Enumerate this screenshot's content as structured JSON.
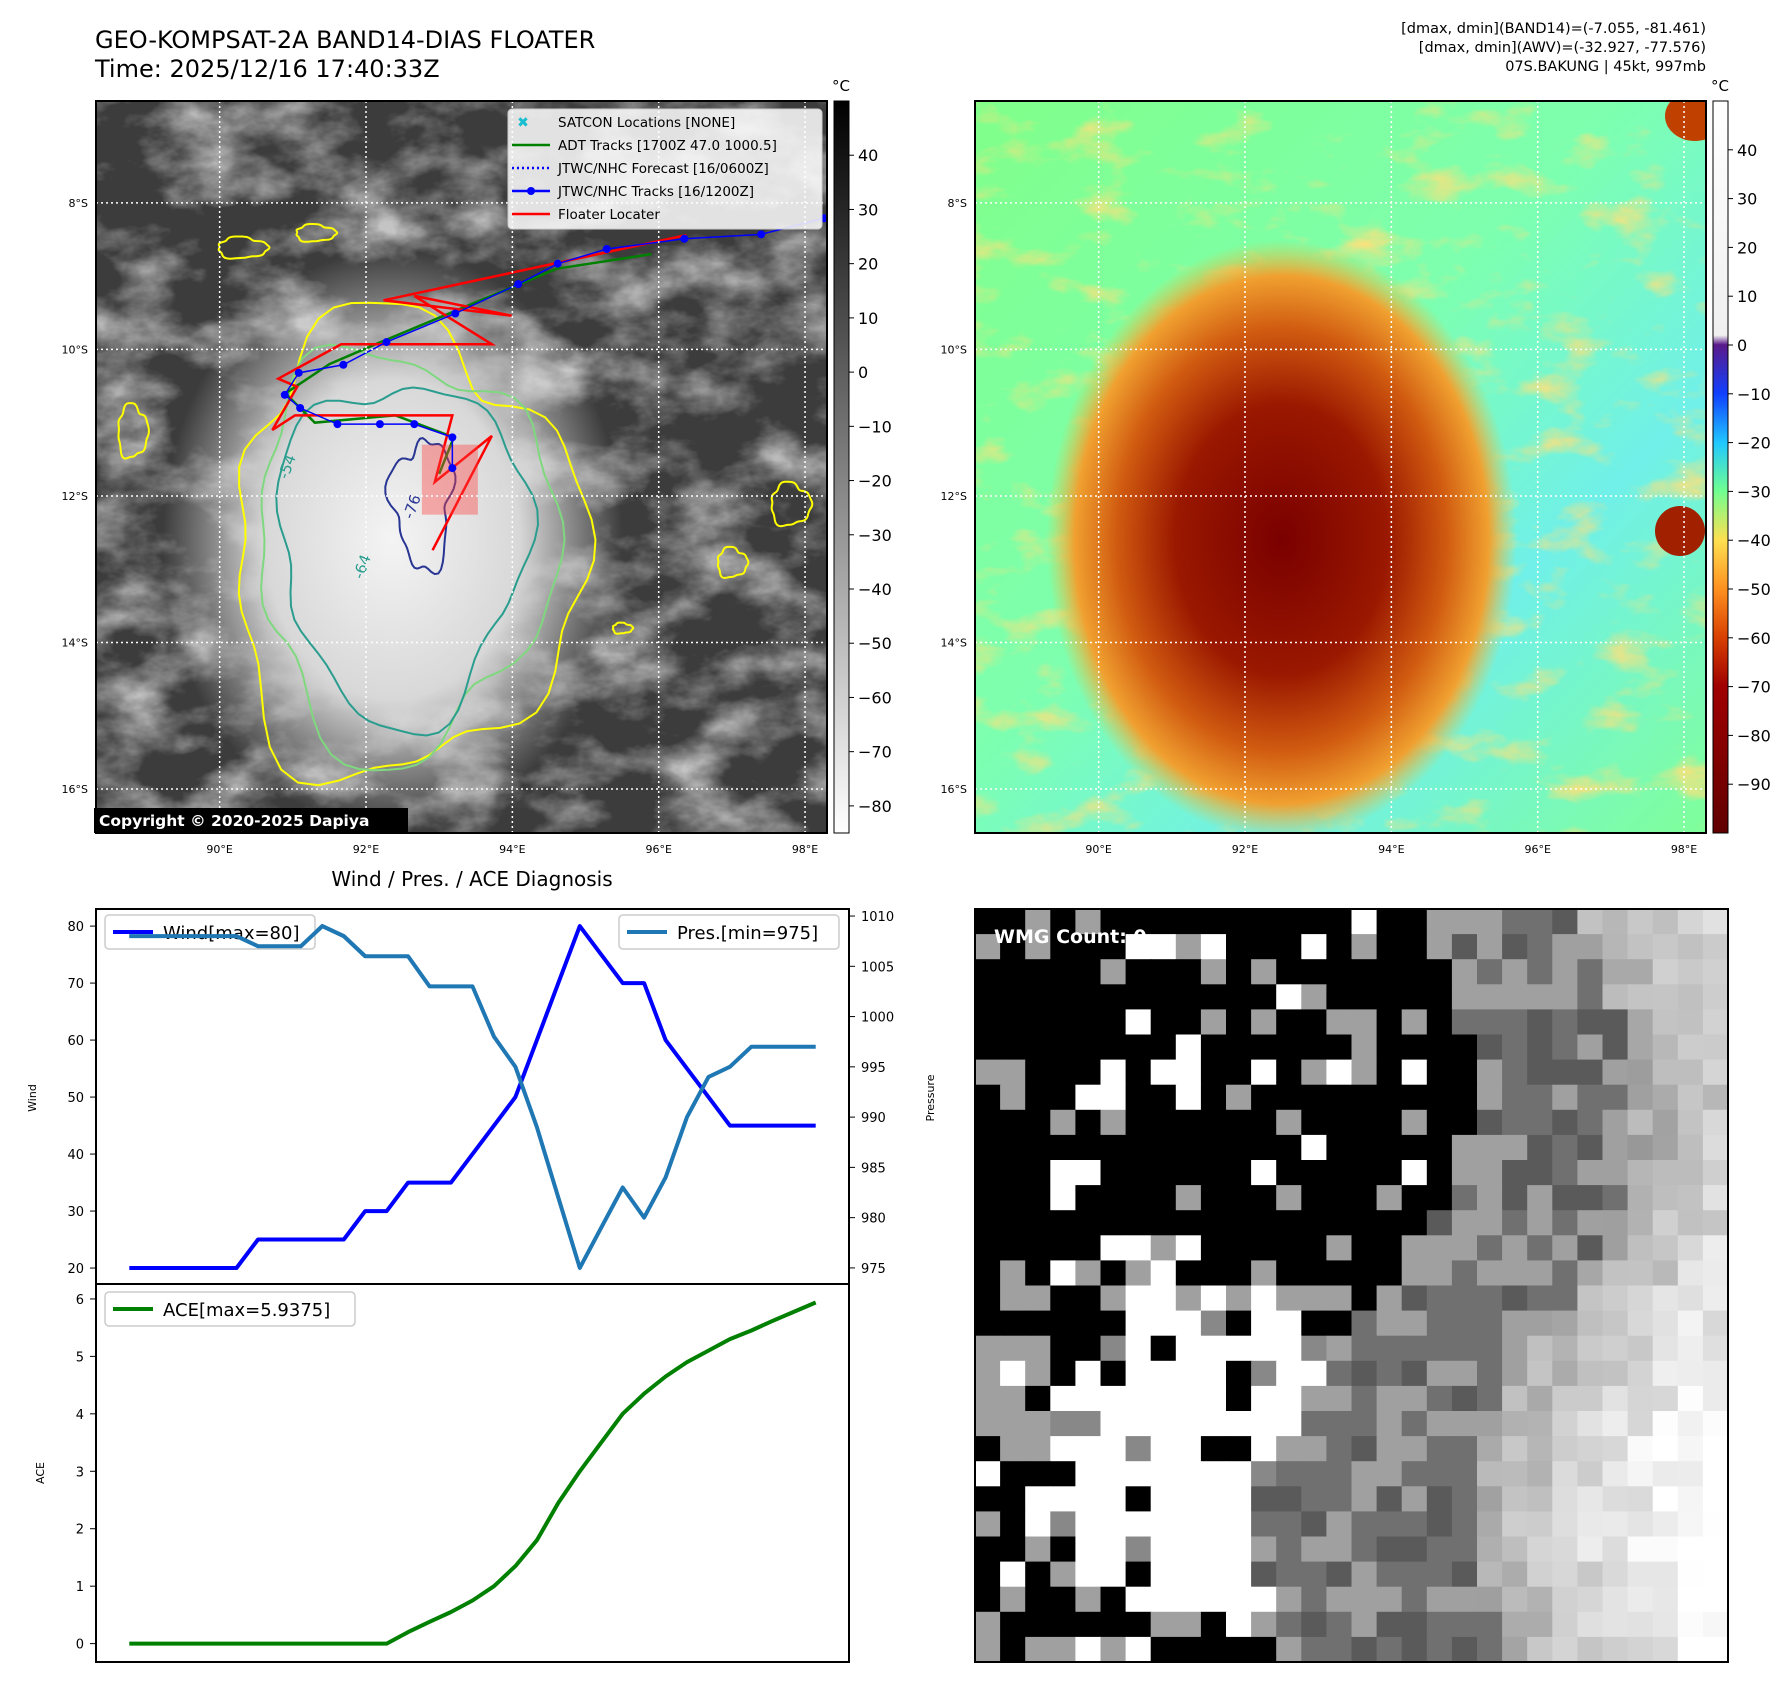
{
  "header": {
    "title": "GEO-KOMPSAT-2A BAND14-DIAS FLOATER",
    "time": "Time: 2025/12/16 17:40:33Z",
    "stats": [
      "[dmax, dmin](BAND14)=(-7.055, -81.461)",
      "[dmax, dmin](AWV)=(-32.927, -77.576)",
      "07S.BAKUNG | 45kt, 997mb"
    ]
  },
  "maps": {
    "extent": {
      "lon": [
        88.31,
        98.3
      ],
      "lat": [
        -16.6,
        -6.61
      ]
    },
    "lat_ticks": [
      {
        "v": -8,
        "label": "8°S"
      },
      {
        "v": -10,
        "label": "10°S"
      },
      {
        "v": -12,
        "label": "12°S"
      },
      {
        "v": -14,
        "label": "14°S"
      },
      {
        "v": -16,
        "label": "16°S"
      }
    ],
    "lon_ticks": [
      {
        "v": 90,
        "label": "90°E"
      },
      {
        "v": 92,
        "label": "92°E"
      },
      {
        "v": 94,
        "label": "94°E"
      },
      {
        "v": 96,
        "label": "96°E"
      },
      {
        "v": 98,
        "label": "98°E"
      }
    ],
    "colorbar_unit": "°C",
    "left_colorbar": {
      "range": [
        50,
        -85
      ],
      "ticks": [
        "40",
        "30",
        "20",
        "10",
        "0",
        "−10",
        "−20",
        "−30",
        "−40",
        "−50",
        "−60",
        "−70",
        "−80"
      ],
      "tick_values": [
        40,
        30,
        20,
        10,
        0,
        -10,
        -20,
        -30,
        -40,
        -50,
        -60,
        -70,
        -80
      ]
    },
    "right_colorbar": {
      "range": [
        50,
        -100
      ],
      "ticks": [
        "40",
        "30",
        "20",
        "10",
        "0",
        "−10",
        "−20",
        "−30",
        "−40",
        "−50",
        "−60",
        "−70",
        "−80",
        "−90"
      ],
      "tick_values": [
        40,
        30,
        20,
        10,
        0,
        -10,
        -20,
        -30,
        -40,
        -50,
        -60,
        -70,
        -80,
        -90
      ]
    },
    "legend": [
      {
        "label": "SATCON Locations [NONE]",
        "color": "#17becf",
        "style": "x"
      },
      {
        "label": "ADT Tracks [1700Z 47.0 1000.5]",
        "color": "#008000",
        "style": "solid"
      },
      {
        "label": "JTWC/NHC Forecast [16/0600Z]",
        "color": "#0000ff",
        "style": "dotted"
      },
      {
        "label": "JTWC/NHC Tracks [16/1200Z]",
        "color": "#0000ff",
        "style": "marker"
      },
      {
        "label": "Floater Locater",
        "color": "#ff0000",
        "style": "solid"
      }
    ],
    "copyright": "Copyright © 2020-2025 Dapiya",
    "contour_labels": [
      "-54",
      "-64",
      "-76"
    ],
    "jtwc_track": [
      [
        98.26,
        -8.21
      ],
      [
        97.4,
        -8.43
      ],
      [
        96.35,
        -8.49
      ],
      [
        95.29,
        -8.63
      ],
      [
        94.62,
        -8.83
      ],
      [
        94.08,
        -9.11
      ],
      [
        93.22,
        -9.51
      ],
      [
        92.28,
        -9.9
      ],
      [
        91.69,
        -10.21
      ],
      [
        91.08,
        -10.32
      ],
      [
        90.89,
        -10.62
      ],
      [
        91.1,
        -10.8
      ],
      [
        91.61,
        -11.02
      ],
      [
        92.19,
        -11.02
      ],
      [
        92.66,
        -11.02
      ],
      [
        93.18,
        -11.2
      ],
      [
        93.18,
        -11.62
      ]
    ],
    "floater_track": [
      [
        96.38,
        -8.44
      ],
      [
        92.24,
        -9.33
      ],
      [
        93.99,
        -9.54
      ],
      [
        92.66,
        -9.27
      ],
      [
        93.72,
        -9.93
      ],
      [
        91.66,
        -9.93
      ],
      [
        90.8,
        -10.4
      ],
      [
        91.06,
        -10.51
      ],
      [
        90.72,
        -11.1
      ],
      [
        91.03,
        -10.9
      ],
      [
        93.18,
        -10.9
      ],
      [
        92.94,
        -11.81
      ],
      [
        93.72,
        -11.18
      ],
      [
        92.91,
        -12.74
      ]
    ],
    "adt_track": [
      [
        95.9,
        -8.7
      ],
      [
        94.6,
        -8.9
      ],
      [
        93.4,
        -9.4
      ],
      [
        92.2,
        -9.9
      ],
      [
        91.5,
        -10.2
      ],
      [
        90.9,
        -10.6
      ],
      [
        91.3,
        -11.0
      ],
      [
        92.4,
        -10.9
      ],
      [
        93.2,
        -11.2
      ],
      [
        93.0,
        -11.7
      ]
    ]
  },
  "chart_data": [
    {
      "type": "line",
      "title": "Wind / Pres. / ACE Diagnosis",
      "ylabel": "Wind",
      "y2label": "Pressure",
      "ylim": [
        17.2,
        83
      ],
      "y2lim": [
        973.4,
        1010.7
      ],
      "xlim": [
        -1.55,
        33.55
      ],
      "yticks": [
        "20",
        "30",
        "40",
        "50",
        "60",
        "70",
        "80"
      ],
      "y2ticks": [
        "975",
        "980",
        "985",
        "990",
        "995",
        "1000",
        "1005",
        "1010"
      ],
      "grid": false,
      "series": [
        {
          "name": "Wind[max=80]",
          "color": "#0000ff",
          "axis": "left",
          "legend": "top-left",
          "values": [
            20,
            20,
            20,
            20,
            20,
            20,
            25,
            25,
            25,
            25,
            25,
            30,
            30,
            35,
            35,
            35,
            40,
            45,
            50,
            60,
            70,
            80,
            75,
            70,
            70,
            60,
            55,
            50,
            45,
            45,
            45,
            45,
            45
          ]
        },
        {
          "name": "Pres.[min=975]",
          "color": "#1f77b4",
          "axis": "right",
          "legend": "top-right",
          "values": [
            1008,
            1008,
            1008,
            1008,
            1008,
            1008,
            1007,
            1007,
            1007,
            1009,
            1008,
            1006,
            1006,
            1006,
            1003,
            1003,
            1003,
            998,
            995,
            989,
            982,
            975,
            979,
            983,
            980,
            984,
            990,
            994,
            995,
            997,
            997,
            997,
            997
          ]
        }
      ]
    },
    {
      "type": "line",
      "ylabel": "ACE",
      "ylim": [
        -0.32,
        6.26
      ],
      "xlim": [
        -1.55,
        33.55
      ],
      "yticks": [
        "0",
        "1",
        "2",
        "3",
        "4",
        "5",
        "6"
      ],
      "grid": false,
      "series": [
        {
          "name": "ACE[max=5.9375]",
          "color": "#008000",
          "legend": "top-left",
          "values": [
            0,
            0,
            0,
            0,
            0,
            0,
            0,
            0,
            0,
            0,
            0,
            0,
            0,
            0.2,
            0.38,
            0.55,
            0.75,
            1.0,
            1.35,
            1.8,
            2.45,
            3.0,
            3.5,
            4.0,
            4.35,
            4.65,
            4.9,
            5.1,
            5.3,
            5.45,
            5.62,
            5.78,
            5.9375
          ]
        }
      ]
    }
  ],
  "wmg": {
    "label": "WMG Count: 0"
  }
}
